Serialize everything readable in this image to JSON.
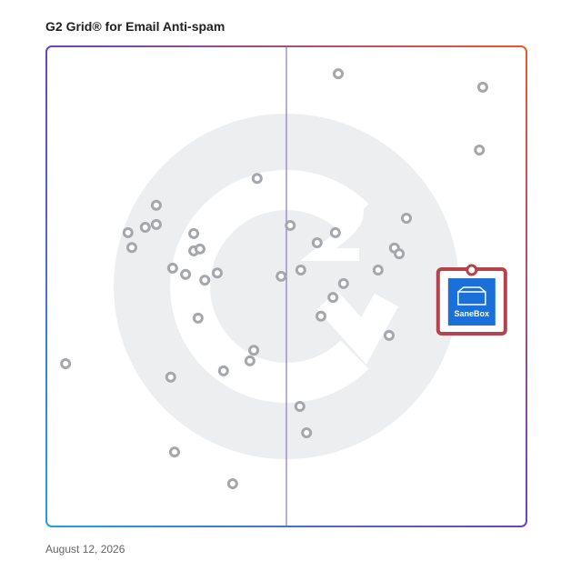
{
  "chart_data": {
    "type": "scatter",
    "title": "G2 Grid® for Email Anti-spam",
    "date": "August 12, 2026",
    "xlim": [
      0,
      100
    ],
    "ylim": [
      0,
      100
    ],
    "color": "#a5a7ad",
    "x": [
      60.8,
      90.9,
      90.2,
      43.9,
      22.9,
      75.0,
      50.8,
      60.2,
      17.0,
      20.6,
      22.9,
      30.7,
      56.4,
      17.8,
      30.7,
      32.0,
      72.5,
      73.5,
      26.3,
      29.0,
      33.0,
      35.6,
      48.9,
      53.0,
      69.1,
      61.9,
      59.7,
      57.2,
      31.6,
      71.4,
      4.0,
      43.2,
      42.4,
      25.9,
      36.9,
      52.8,
      54.2,
      26.7,
      38.8
    ],
    "y": [
      94.3,
      91.5,
      78.4,
      72.5,
      66.9,
      64.2,
      62.7,
      61.2,
      61.2,
      62.3,
      62.9,
      61.0,
      59.1,
      58.1,
      57.4,
      57.8,
      58.0,
      56.8,
      53.8,
      52.5,
      51.3,
      52.8,
      52.1,
      53.4,
      53.4,
      50.6,
      47.7,
      43.8,
      43.4,
      39.8,
      33.9,
      36.7,
      34.5,
      31.1,
      32.4,
      25.0,
      19.5,
      15.5,
      8.9
    ],
    "highlight": {
      "name": "SaneBox",
      "x": 88.6,
      "y": 53.4,
      "color": "#b5434b"
    }
  }
}
